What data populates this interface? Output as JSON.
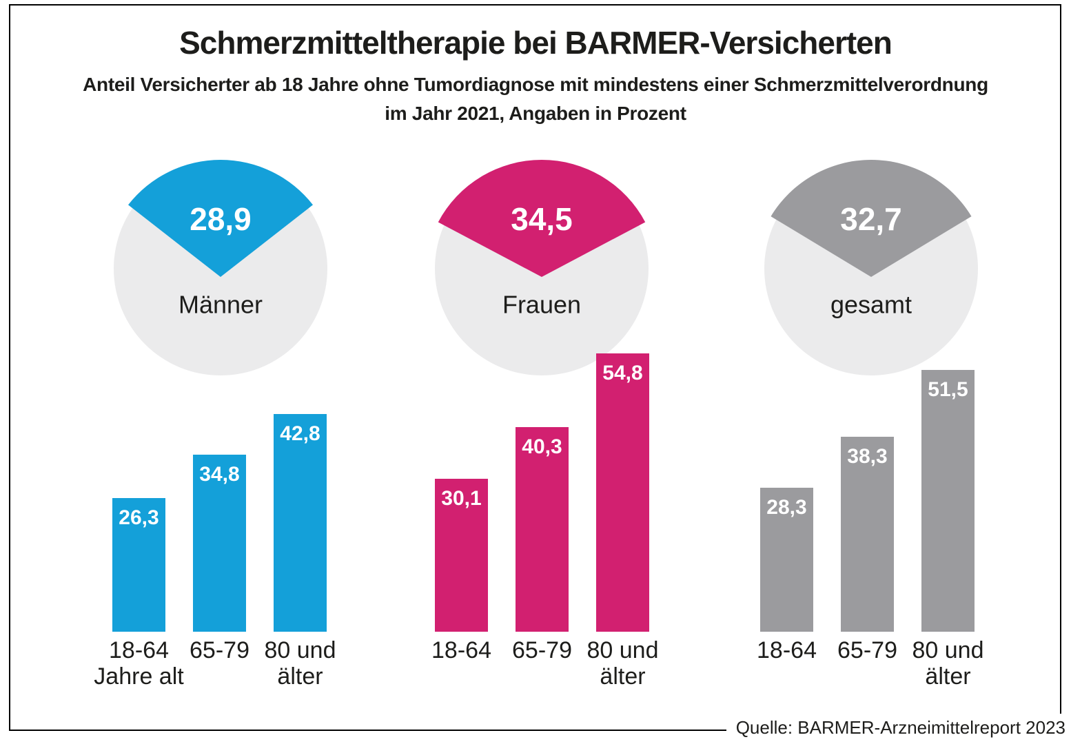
{
  "header": {
    "title": "Schmerzmitteltherapie bei BARMER-Versicherten",
    "subtitle_line1": "Anteil Versicherter ab 18 Jahre ohne Tumordiagnose mit mindestens einer Schmerzmittelverordnung",
    "subtitle_line2": "im Jahr 2021, Angaben in Prozent"
  },
  "footer": {
    "source": "Quelle: BARMER-Arzneimittelreport 2023"
  },
  "colors": {
    "men_blue": "#14a0d9",
    "women_pink": "#d22070",
    "total_gray": "#9b9b9e",
    "pie_remainder": "#ebebec",
    "text_dark": "#1d1d1b",
    "value_text": "#ffffff",
    "frame": "#000000"
  },
  "chart_data": {
    "type": "bar",
    "unit": "percent",
    "decimal_separator": ",",
    "note": "Each group has a pie showing the overall share and bars by age group; values in percent.",
    "groups": [
      {
        "name": "Männer",
        "share_total": 28.9,
        "share_total_label": "28,9",
        "color": "#14a0d9",
        "categories": [
          [
            "18-64",
            "Jahre alt"
          ],
          [
            "65-79",
            ""
          ],
          [
            "80 und",
            "älter"
          ]
        ],
        "values": [
          26.3,
          34.8,
          42.8
        ],
        "value_labels": [
          "26,3",
          "34,8",
          "42,8"
        ]
      },
      {
        "name": "Frauen",
        "share_total": 34.5,
        "share_total_label": "34,5",
        "color": "#d22070",
        "categories": [
          [
            "18-64",
            ""
          ],
          [
            "65-79",
            ""
          ],
          [
            "80 und",
            "älter"
          ]
        ],
        "values": [
          30.1,
          40.3,
          54.8
        ],
        "value_labels": [
          "30,1",
          "40,3",
          "54,8"
        ]
      },
      {
        "name": "gesamt",
        "share_total": 32.7,
        "share_total_label": "32,7",
        "color": "#9b9b9e",
        "categories": [
          [
            "18-64",
            ""
          ],
          [
            "65-79",
            ""
          ],
          [
            "80 und",
            "älter"
          ]
        ],
        "values": [
          28.3,
          38.3,
          51.5
        ],
        "value_labels": [
          "28,3",
          "38,3",
          "51,5"
        ]
      }
    ],
    "ylim": [
      0,
      60
    ],
    "grid": false,
    "legend": false
  }
}
